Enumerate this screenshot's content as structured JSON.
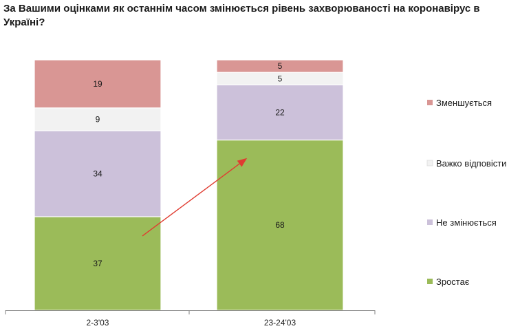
{
  "chart_data": {
    "type": "bar",
    "stacked": true,
    "title": "За Вашими оцінками як останнім часом змінюється рівень захворюваності на коронавірус в Україні?",
    "categories": [
      "2-3'03",
      "23-24'03"
    ],
    "series": [
      {
        "name": "Зростає",
        "color": "#9bbb59",
        "values": [
          37,
          68
        ]
      },
      {
        "name": "Не змінюється",
        "color": "#ccc1da",
        "values": [
          34,
          22
        ]
      },
      {
        "name": "Важко відповісти",
        "color": "#f2f2f2",
        "values": [
          9,
          5
        ]
      },
      {
        "name": "Зменшується",
        "color": "#d99694",
        "values": [
          19,
          5
        ]
      }
    ],
    "legend_order": [
      "Зменшується",
      "Важко відповісти",
      "Не змінюється",
      "Зростає"
    ],
    "legend_position": "right",
    "ylim": [
      0,
      100
    ],
    "grid": false,
    "annotations": [
      {
        "type": "arrow",
        "color": "#e03c31"
      }
    ]
  }
}
